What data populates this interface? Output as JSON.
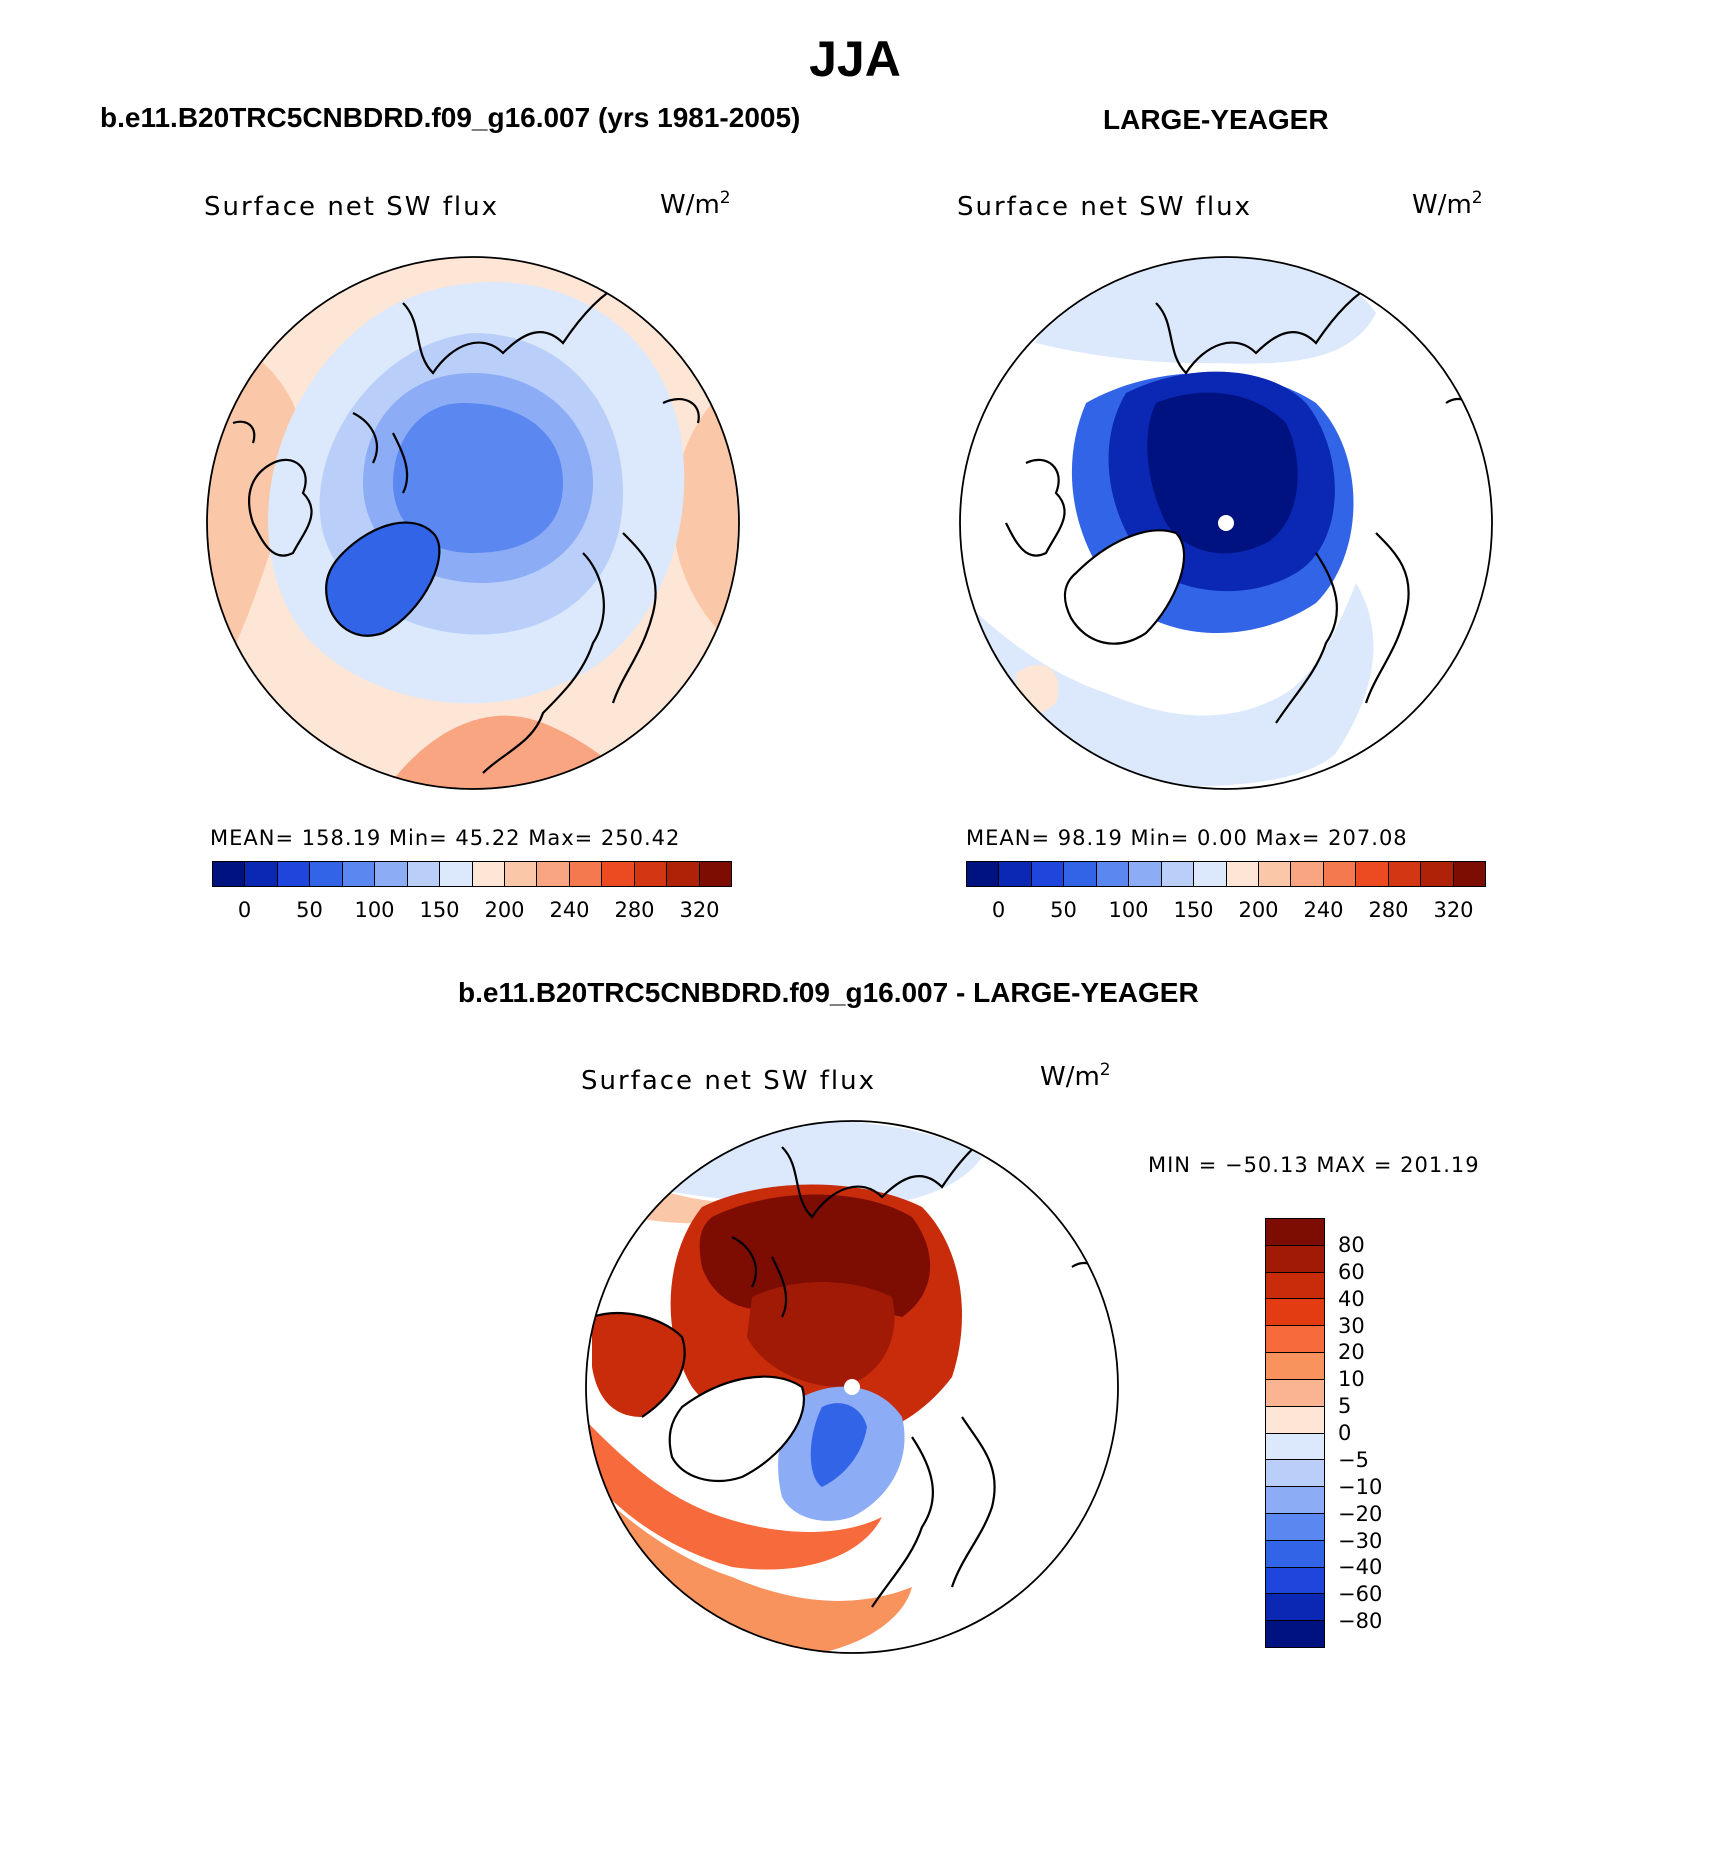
{
  "title": "JJA",
  "panels": [
    {
      "heading": "b.e11.B20TRC5CNBDRD.f09_g16.007 (yrs 1981-2005)",
      "variable": "Surface net SW flux",
      "units_base": "W/m",
      "units_exp": "2",
      "stats": "MEAN= 158.19   Min=   45.22   Max= 250.42",
      "colorbar_labels": [
        "0",
        "50",
        "100",
        "150",
        "200",
        "240",
        "280",
        "320"
      ]
    },
    {
      "heading": "LARGE-YEAGER",
      "variable": "Surface net SW flux",
      "units_base": "W/m",
      "units_exp": "2",
      "stats": "MEAN=   98.19   Min=     0.00   Max= 207.08",
      "colorbar_labels": [
        "0",
        "50",
        "100",
        "150",
        "200",
        "240",
        "280",
        "320"
      ]
    },
    {
      "heading": "b.e11.B20TRC5CNBDRD.f09_g16.007 - LARGE-YEAGER",
      "variable": "Surface net SW flux",
      "units_base": "W/m",
      "units_exp": "2",
      "stats": "MIN = −50.13  MAX = 201.19",
      "colorbar_labels": [
        "80",
        "60",
        "40",
        "30",
        "20",
        "10",
        "5",
        "0",
        "−5",
        "−10",
        "−20",
        "−30",
        "−40",
        "−60",
        "−80"
      ]
    }
  ],
  "colors": {
    "abs_scale": [
      "#00127f",
      "#0a28b4",
      "#1e46dc",
      "#3264e8",
      "#5a87f0",
      "#8cacf5",
      "#b9cff9",
      "#dce8fc",
      "#fde6d6",
      "#fbc7a9",
      "#f9a582",
      "#f5794f",
      "#ec4a20",
      "#d23612",
      "#b02208",
      "#7d0c02"
    ],
    "diff_scale": [
      "#7d0c02",
      "#a01a05",
      "#c82c0a",
      "#e43c12",
      "#f76a3c",
      "#f9935e",
      "#fbb491",
      "#fde6d6",
      "#dce8fc",
      "#b9cff9",
      "#8cacf5",
      "#5a87f0",
      "#3264e8",
      "#1e46dc",
      "#0a28b4",
      "#00127f"
    ],
    "land": "#ffffff",
    "coast": "#000000"
  }
}
